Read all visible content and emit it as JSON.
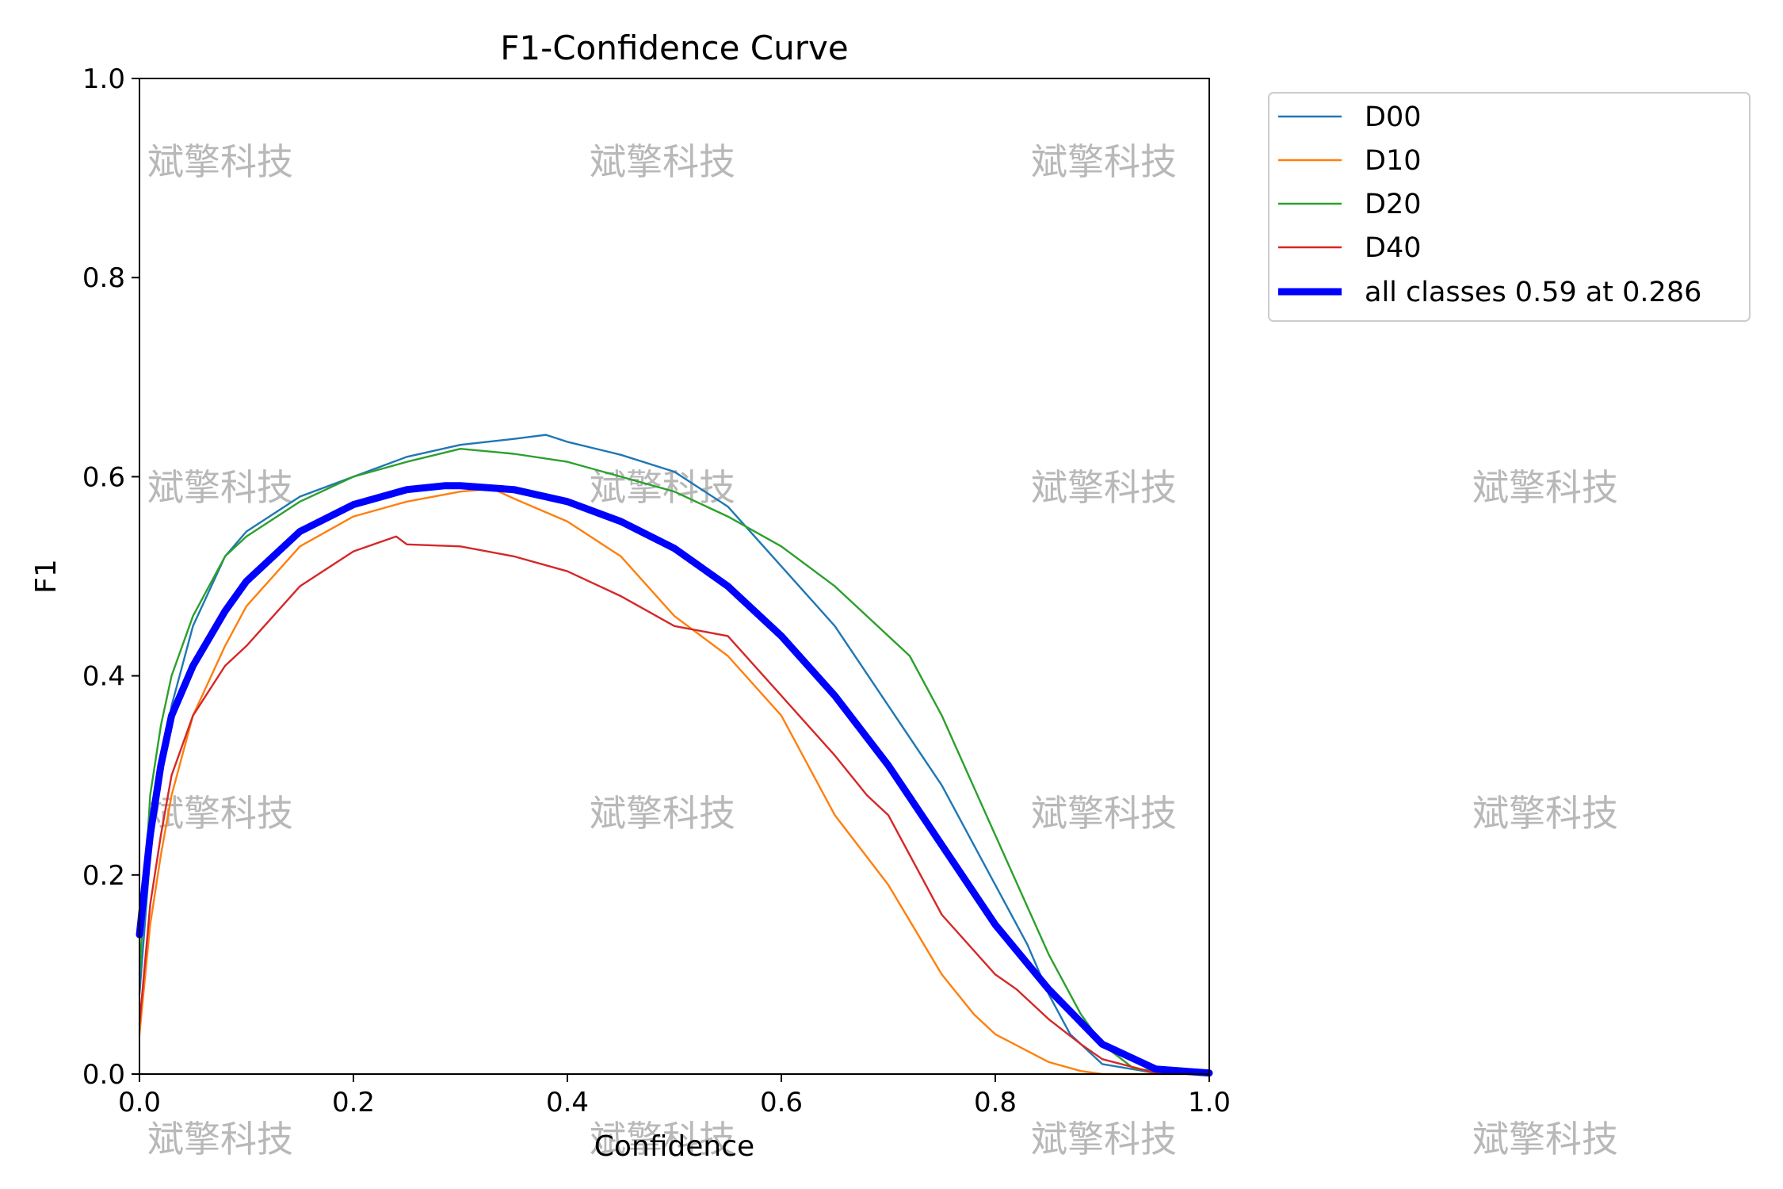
{
  "chart_data": {
    "type": "line",
    "title": "F1-Confidence Curve",
    "xlabel": "Confidence",
    "ylabel": "F1",
    "xlim": [
      0,
      1
    ],
    "ylim": [
      0,
      1
    ],
    "x_ticks": [
      "0.0",
      "0.2",
      "0.4",
      "0.6",
      "0.8",
      "1.0"
    ],
    "y_ticks": [
      "0.0",
      "0.2",
      "0.4",
      "0.6",
      "0.8",
      "1.0"
    ],
    "grid": false,
    "legend_position": "outside-top-right",
    "series": [
      {
        "name": "D00",
        "color": "#1f77b4",
        "x": [
          0,
          0.01,
          0.02,
          0.03,
          0.05,
          0.08,
          0.1,
          0.15,
          0.2,
          0.25,
          0.3,
          0.35,
          0.38,
          0.4,
          0.45,
          0.5,
          0.55,
          0.6,
          0.65,
          0.7,
          0.75,
          0.8,
          0.83,
          0.85,
          0.87,
          0.9,
          0.95,
          1.0
        ],
        "values": [
          0.08,
          0.22,
          0.3,
          0.37,
          0.45,
          0.52,
          0.545,
          0.58,
          0.6,
          0.62,
          0.632,
          0.638,
          0.642,
          0.635,
          0.622,
          0.605,
          0.57,
          0.51,
          0.45,
          0.37,
          0.29,
          0.19,
          0.13,
          0.08,
          0.04,
          0.01,
          0.001,
          0.0
        ]
      },
      {
        "name": "D10",
        "color": "#ff7f0e",
        "x": [
          0,
          0.01,
          0.02,
          0.03,
          0.05,
          0.08,
          0.1,
          0.15,
          0.2,
          0.25,
          0.3,
          0.33,
          0.35,
          0.4,
          0.45,
          0.5,
          0.55,
          0.6,
          0.65,
          0.7,
          0.75,
          0.78,
          0.8,
          0.85,
          0.88,
          0.9,
          1.0
        ],
        "values": [
          0.04,
          0.15,
          0.22,
          0.28,
          0.36,
          0.43,
          0.47,
          0.53,
          0.56,
          0.575,
          0.585,
          0.588,
          0.578,
          0.555,
          0.52,
          0.46,
          0.42,
          0.36,
          0.26,
          0.19,
          0.1,
          0.06,
          0.04,
          0.012,
          0.003,
          0.0,
          0.0
        ]
      },
      {
        "name": "D20",
        "color": "#2ca02c",
        "x": [
          0,
          0.01,
          0.02,
          0.03,
          0.05,
          0.08,
          0.1,
          0.15,
          0.2,
          0.25,
          0.3,
          0.35,
          0.4,
          0.45,
          0.5,
          0.55,
          0.6,
          0.65,
          0.7,
          0.72,
          0.75,
          0.8,
          0.85,
          0.88,
          0.9,
          0.93,
          1.0
        ],
        "values": [
          0.1,
          0.28,
          0.35,
          0.4,
          0.46,
          0.52,
          0.54,
          0.575,
          0.6,
          0.615,
          0.628,
          0.623,
          0.615,
          0.6,
          0.585,
          0.56,
          0.53,
          0.49,
          0.44,
          0.42,
          0.36,
          0.24,
          0.12,
          0.06,
          0.03,
          0.005,
          0.0
        ]
      },
      {
        "name": "D40",
        "color": "#d62728",
        "x": [
          0,
          0.01,
          0.02,
          0.03,
          0.05,
          0.08,
          0.1,
          0.15,
          0.2,
          0.24,
          0.25,
          0.3,
          0.35,
          0.4,
          0.45,
          0.5,
          0.55,
          0.6,
          0.65,
          0.68,
          0.7,
          0.75,
          0.8,
          0.82,
          0.85,
          0.88,
          0.9,
          0.95,
          1.0
        ],
        "values": [
          0.05,
          0.17,
          0.24,
          0.3,
          0.36,
          0.41,
          0.43,
          0.49,
          0.525,
          0.54,
          0.532,
          0.53,
          0.52,
          0.505,
          0.48,
          0.45,
          0.44,
          0.38,
          0.32,
          0.28,
          0.26,
          0.16,
          0.1,
          0.085,
          0.055,
          0.03,
          0.015,
          0.001,
          0.0
        ]
      },
      {
        "name": "all classes 0.59 at 0.286",
        "color": "#0000ff",
        "bold": true,
        "x": [
          0,
          0.01,
          0.02,
          0.03,
          0.05,
          0.08,
          0.1,
          0.15,
          0.2,
          0.25,
          0.286,
          0.3,
          0.35,
          0.4,
          0.45,
          0.5,
          0.55,
          0.6,
          0.65,
          0.7,
          0.75,
          0.8,
          0.85,
          0.9,
          0.95,
          1.0
        ],
        "values": [
          0.14,
          0.24,
          0.31,
          0.36,
          0.41,
          0.465,
          0.495,
          0.545,
          0.572,
          0.587,
          0.591,
          0.591,
          0.587,
          0.575,
          0.555,
          0.528,
          0.49,
          0.44,
          0.38,
          0.31,
          0.23,
          0.15,
          0.085,
          0.03,
          0.005,
          0.001
        ]
      }
    ]
  },
  "watermark": {
    "text": "斌擎科技"
  }
}
